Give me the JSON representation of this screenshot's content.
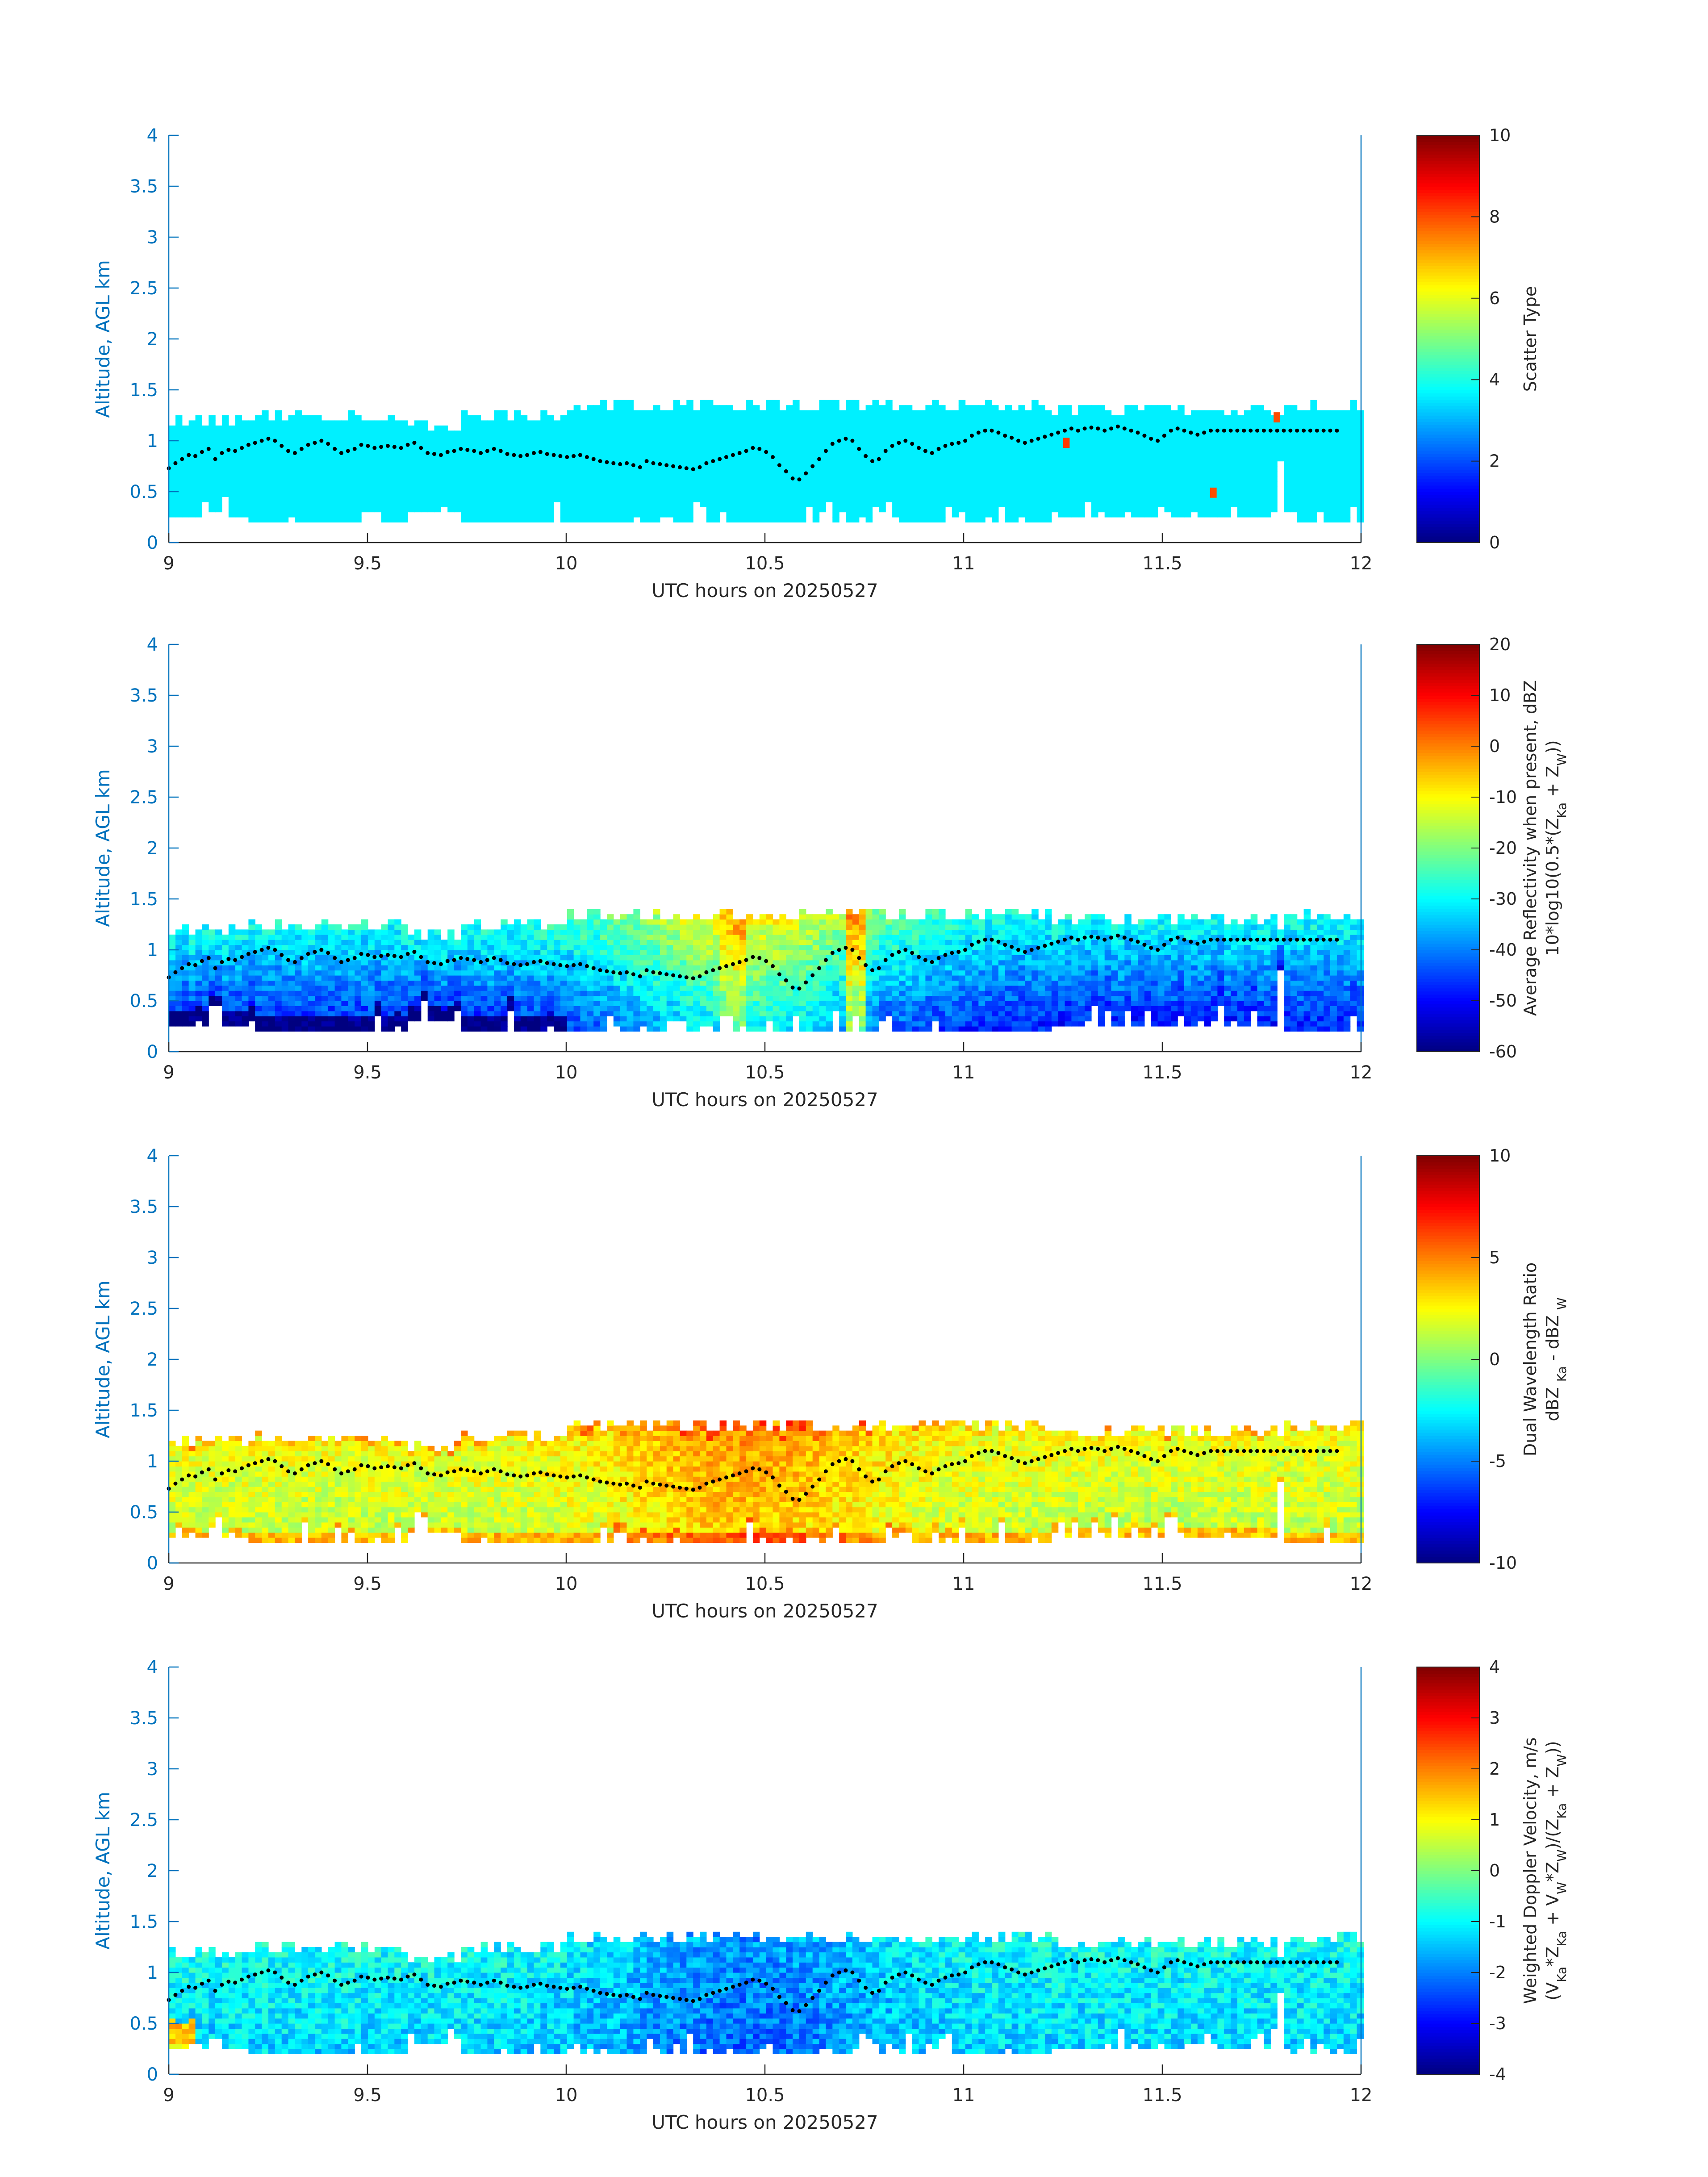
{
  "colors": {
    "axis": "#0072BD",
    "text": "#262626",
    "colormap": "jet",
    "cloud_base_marker": "#000000"
  },
  "chart_data": [
    {
      "type": "heatmap",
      "x": {
        "label": "UTC hours on 20250527",
        "lim": [
          9,
          12
        ],
        "ticks": [
          9,
          9.5,
          10,
          10.5,
          11,
          11.5,
          12
        ],
        "tick_labels": [
          "9",
          "9.5",
          "10",
          "10.5",
          "11",
          "11.5",
          "12"
        ]
      },
      "y": {
        "label": "Altitude, AGL km",
        "lim": [
          0,
          4
        ],
        "ticks": [
          0,
          0.5,
          1,
          1.5,
          2,
          2.5,
          3,
          3.5,
          4
        ],
        "tick_labels": [
          "0",
          "0.5",
          "1",
          "1.5",
          "2",
          "2.5",
          "3",
          "3.5",
          "4"
        ]
      },
      "colorbar": {
        "label": "Scatter Type",
        "lim": [
          0,
          10
        ],
        "ticks": [
          0,
          2,
          4,
          6,
          8,
          10
        ],
        "tick_labels": [
          "0",
          "2",
          "4",
          "6",
          "8",
          "10"
        ]
      },
      "fill": {
        "mode": "constant",
        "value": 3.6,
        "patches": [
          {
            "x": 11.25,
            "z": 0.93,
            "value": 8.2
          },
          {
            "x": 11.62,
            "z": 0.44,
            "value": 8.0
          },
          {
            "x": 11.78,
            "z": 1.18,
            "value": 8.0
          }
        ]
      }
    },
    {
      "type": "heatmap",
      "x": {
        "label": "UTC hours on 20250527",
        "lim": [
          9,
          12
        ],
        "ticks": [
          9,
          9.5,
          10,
          10.5,
          11,
          11.5,
          12
        ],
        "tick_labels": [
          "9",
          "9.5",
          "10",
          "10.5",
          "11",
          "11.5",
          "12"
        ]
      },
      "y": {
        "label": "Altitude, AGL km",
        "lim": [
          0,
          4
        ],
        "ticks": [
          0,
          0.5,
          1,
          1.5,
          2,
          2.5,
          3,
          3.5,
          4
        ],
        "tick_labels": [
          "0",
          "0.5",
          "1",
          "1.5",
          "2",
          "2.5",
          "3",
          "3.5",
          "4"
        ]
      },
      "colorbar": {
        "label": "Average Reflectivity when present, dBZ",
        "label2_html": "10*log10(0.5*(Z<tspan baseline-shift=\"sub\" font-size=\"28px\">Ka</tspan> + Z<tspan baseline-shift=\"sub\" font-size=\"28px\">W</tspan>))",
        "lim": [
          -60,
          20
        ],
        "ticks": [
          -60,
          -50,
          -40,
          -30,
          -20,
          -10,
          0,
          10,
          20
        ],
        "tick_labels": [
          "-60",
          "-50",
          "-40",
          "-30",
          "-20",
          "-10",
          "0",
          "10",
          "20"
        ]
      },
      "fill": {
        "mode": "reflectivity"
      }
    },
    {
      "type": "heatmap",
      "x": {
        "label": "UTC hours on 20250527",
        "lim": [
          9,
          12
        ],
        "ticks": [
          9,
          9.5,
          10,
          10.5,
          11,
          11.5,
          12
        ],
        "tick_labels": [
          "9",
          "9.5",
          "10",
          "10.5",
          "11",
          "11.5",
          "12"
        ]
      },
      "y": {
        "label": "Altitude, AGL km",
        "lim": [
          0,
          4
        ],
        "ticks": [
          0,
          0.5,
          1,
          1.5,
          2,
          2.5,
          3,
          3.5,
          4
        ],
        "tick_labels": [
          "0",
          "0.5",
          "1",
          "1.5",
          "2",
          "2.5",
          "3",
          "3.5",
          "4"
        ]
      },
      "colorbar": {
        "label": "Dual Wavelength Ratio",
        "label2_html": "dBZ <tspan baseline-shift=\"sub\" font-size=\"28px\">Ka</tspan> - dBZ <tspan baseline-shift=\"sub\" font-size=\"28px\">W</tspan>",
        "lim": [
          -10,
          10
        ],
        "ticks": [
          -10,
          -5,
          0,
          5,
          10
        ],
        "tick_labels": [
          "-10",
          "-5",
          "0",
          "5",
          "10"
        ]
      },
      "fill": {
        "mode": "dwr"
      }
    },
    {
      "type": "heatmap",
      "x": {
        "label": "UTC hours on 20250527",
        "lim": [
          9,
          12
        ],
        "ticks": [
          9,
          9.5,
          10,
          10.5,
          11,
          11.5,
          12
        ],
        "tick_labels": [
          "9",
          "9.5",
          "10",
          "10.5",
          "11",
          "11.5",
          "12"
        ]
      },
      "y": {
        "label": "Altitude, AGL km",
        "lim": [
          0,
          4
        ],
        "ticks": [
          0,
          0.5,
          1,
          1.5,
          2,
          2.5,
          3,
          3.5,
          4
        ],
        "tick_labels": [
          "0",
          "0.5",
          "1",
          "1.5",
          "2",
          "2.5",
          "3",
          "3.5",
          "4"
        ]
      },
      "colorbar": {
        "label": "Weighted Doppler Velocity, m/s",
        "label2_html": "(V<tspan baseline-shift=\"sub\" font-size=\"28px\">Ka</tspan>*Z<tspan baseline-shift=\"sub\" font-size=\"28px\">Ka</tspan> + V<tspan baseline-shift=\"sub\" font-size=\"28px\">W</tspan>*Z<tspan baseline-shift=\"sub\" font-size=\"28px\">W</tspan>)/(Z<tspan baseline-shift=\"sub\" font-size=\"28px\">Ka</tspan> + Z<tspan baseline-shift=\"sub\" font-size=\"28px\">W</tspan>))",
        "lim": [
          -4,
          4
        ],
        "ticks": [
          -4,
          -3,
          -2,
          -1,
          0,
          1,
          2,
          3,
          4
        ],
        "tick_labels": [
          "-4",
          "-3",
          "-2",
          "-1",
          "0",
          "1",
          "2",
          "3",
          "4"
        ]
      },
      "fill": {
        "mode": "velocity"
      }
    }
  ],
  "cloud_layer": {
    "bin_hours": 0.0167,
    "bins_start": 9.0,
    "range_gate_km": 0.05,
    "segments": [
      {
        "from": 9.0,
        "to": 9.2,
        "base": 0.25,
        "top": 1.2
      },
      {
        "from": 9.2,
        "to": 9.6,
        "base": 0.2,
        "top": 1.25
      },
      {
        "from": 9.6,
        "to": 9.72,
        "base": 0.3,
        "top": 1.15
      },
      {
        "from": 9.72,
        "to": 10.0,
        "base": 0.2,
        "top": 1.25
      },
      {
        "from": 10.0,
        "to": 10.7,
        "base": 0.2,
        "top": 1.32
      },
      {
        "from": 10.7,
        "to": 11.22,
        "base": 0.2,
        "top": 1.35
      },
      {
        "from": 11.22,
        "to": 11.78,
        "base": 0.25,
        "top": 1.3
      },
      {
        "from": 11.78,
        "to": 11.8,
        "base": 0.8,
        "top": 1.2
      },
      {
        "from": 11.8,
        "to": 12.0,
        "base": 0.2,
        "top": 1.35
      }
    ],
    "base_markers_km": [
      0.73,
      0.78,
      0.82,
      0.86,
      0.85,
      0.89,
      0.92,
      0.82,
      0.88,
      0.91,
      0.9,
      0.93,
      0.96,
      0.98,
      1.0,
      1.02,
      1.0,
      0.95,
      0.9,
      0.88,
      0.92,
      0.96,
      0.98,
      1.0,
      0.97,
      0.92,
      0.88,
      0.9,
      0.92,
      0.96,
      0.95,
      0.93,
      0.94,
      0.95,
      0.94,
      0.93,
      0.96,
      0.98,
      0.93,
      0.88,
      0.87,
      0.86,
      0.89,
      0.9,
      0.92,
      0.91,
      0.9,
      0.88,
      0.9,
      0.92,
      0.9,
      0.87,
      0.86,
      0.85,
      0.86,
      0.88,
      0.89,
      0.87,
      0.86,
      0.85,
      0.84,
      0.85,
      0.86,
      0.84,
      0.82,
      0.8,
      0.79,
      0.78,
      0.77,
      0.78,
      0.76,
      0.74,
      0.8,
      0.78,
      0.77,
      0.76,
      0.75,
      0.74,
      0.73,
      0.72,
      0.74,
      0.78,
      0.8,
      0.82,
      0.84,
      0.86,
      0.88,
      0.9,
      0.93,
      0.92,
      0.89,
      0.84,
      0.76,
      0.7,
      0.63,
      0.62,
      0.68,
      0.75,
      0.82,
      0.9,
      0.97,
      1.0,
      1.02,
      1.0,
      0.92,
      0.85,
      0.8,
      0.82,
      0.9,
      0.95,
      0.98,
      1.0,
      0.97,
      0.93,
      0.9,
      0.88,
      0.92,
      0.95,
      0.97,
      0.98,
      1.0,
      1.05,
      1.08,
      1.1,
      1.1,
      1.08,
      1.05,
      1.03,
      1.0,
      0.98,
      1.0,
      1.02,
      1.04,
      1.06,
      1.08,
      1.1,
      1.12,
      1.1,
      1.12,
      1.13,
      1.12,
      1.1,
      1.12,
      1.14,
      1.12,
      1.1,
      1.08,
      1.05,
      1.02,
      1.0,
      1.05,
      1.1,
      1.12,
      1.1,
      1.08,
      1.06,
      1.08,
      1.1,
      1.1,
      1.1,
      1.1,
      1.1,
      1.1,
      1.1,
      1.1,
      1.1,
      1.1,
      1.1,
      1.1,
      1.1,
      1.1,
      1.1,
      1.1,
      1.1,
      1.1,
      1.1,
      1.1
    ]
  }
}
